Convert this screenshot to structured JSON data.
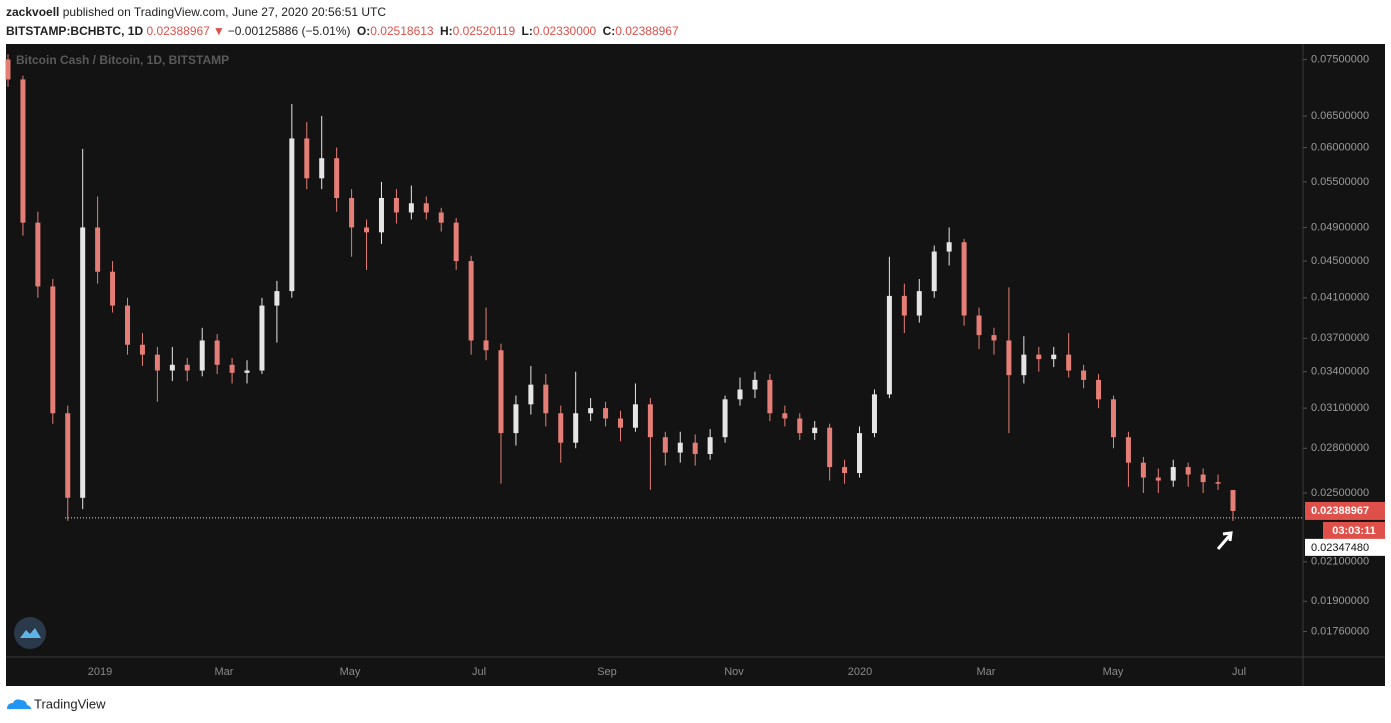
{
  "header": {
    "author": "zackvoell",
    "published": "published on TradingView.com, June 27, 2020 20:56:51 UTC",
    "symbol": "BITSTAMP:BCHBTC, 1D",
    "last": "0.02388967",
    "arrow": "▼",
    "change": "−0.00125886 (−5.01%)",
    "o_label": "O:",
    "o": "0.02518613",
    "h_label": "H:",
    "h": "0.02520119",
    "l_label": "L:",
    "l": "0.02330000",
    "c_label": "C:",
    "c": "0.02388967"
  },
  "footer": {
    "brand": "TradingView"
  },
  "chart_data": {
    "type": "candlestick",
    "watermark": "Bitcoin Cash / Bitcoin, 1D, BITSTAMP",
    "log_scale": true,
    "grid": false,
    "up_color": "#e6e6e6",
    "down_color": "#e57e76",
    "ylim": [
      0.0165,
      0.078
    ],
    "yticks": [
      {
        "value": 0.075,
        "label": "0.07500000"
      },
      {
        "value": 0.065,
        "label": "0.06500000"
      },
      {
        "value": 0.06,
        "label": "0.06000000"
      },
      {
        "value": 0.055,
        "label": "0.05500000"
      },
      {
        "value": 0.049,
        "label": "0.04900000"
      },
      {
        "value": 0.045,
        "label": "0.04500000"
      },
      {
        "value": 0.041,
        "label": "0.04100000"
      },
      {
        "value": 0.037,
        "label": "0.03700000"
      },
      {
        "value": 0.034,
        "label": "0.03400000"
      },
      {
        "value": 0.031,
        "label": "0.03100000"
      },
      {
        "value": 0.028,
        "label": "0.02800000"
      },
      {
        "value": 0.025,
        "label": "0.02500000"
      },
      {
        "value": 0.021,
        "label": "0.02100000"
      },
      {
        "value": 0.019,
        "label": "0.01900000"
      },
      {
        "value": 0.0176,
        "label": "0.01760000"
      }
    ],
    "xlabels": [
      "2019",
      "Mar",
      "May",
      "Jul",
      "Sep",
      "Nov",
      "2020",
      "Mar",
      "May",
      "Jul"
    ],
    "last_price": {
      "value": 0.02388967,
      "label": "0.02388967"
    },
    "countdown": "03:03:11",
    "hline": {
      "value": 0.0234748,
      "label": "0.02347480"
    },
    "candles": [
      [
        0.075,
        0.076,
        0.07,
        0.0713
      ],
      [
        0.0713,
        0.072,
        0.048,
        0.0496
      ],
      [
        0.0496,
        0.051,
        0.041,
        0.0422
      ],
      [
        0.0422,
        0.043,
        0.0298,
        0.0306
      ],
      [
        0.0306,
        0.0312,
        0.0233,
        0.0247
      ],
      [
        0.0247,
        0.0598,
        0.024,
        0.049
      ],
      [
        0.049,
        0.053,
        0.0425,
        0.0438
      ],
      [
        0.0438,
        0.045,
        0.0395,
        0.0402
      ],
      [
        0.0402,
        0.041,
        0.0355,
        0.0364
      ],
      [
        0.0364,
        0.0375,
        0.0345,
        0.0355
      ],
      [
        0.0355,
        0.0362,
        0.0315,
        0.0341
      ],
      [
        0.0341,
        0.0362,
        0.0332,
        0.0346
      ],
      [
        0.0346,
        0.0352,
        0.0332,
        0.0341
      ],
      [
        0.0341,
        0.038,
        0.0336,
        0.0368
      ],
      [
        0.0368,
        0.0374,
        0.0338,
        0.0346
      ],
      [
        0.0346,
        0.0352,
        0.033,
        0.0339
      ],
      [
        0.0339,
        0.035,
        0.033,
        0.0341
      ],
      [
        0.0341,
        0.041,
        0.0338,
        0.0402
      ],
      [
        0.0402,
        0.0428,
        0.0366,
        0.0417
      ],
      [
        0.0417,
        0.067,
        0.041,
        0.0614
      ],
      [
        0.0614,
        0.064,
        0.054,
        0.0555
      ],
      [
        0.0555,
        0.065,
        0.054,
        0.0584
      ],
      [
        0.0584,
        0.06,
        0.051,
        0.0528
      ],
      [
        0.0528,
        0.054,
        0.0455,
        0.049
      ],
      [
        0.049,
        0.05,
        0.044,
        0.0484
      ],
      [
        0.0484,
        0.055,
        0.047,
        0.0528
      ],
      [
        0.0528,
        0.054,
        0.0495,
        0.0509
      ],
      [
        0.0509,
        0.0545,
        0.05,
        0.0521
      ],
      [
        0.0521,
        0.053,
        0.05,
        0.0509
      ],
      [
        0.0509,
        0.0515,
        0.0485,
        0.0496
      ],
      [
        0.0496,
        0.0502,
        0.044,
        0.045
      ],
      [
        0.045,
        0.0456,
        0.0355,
        0.0368
      ],
      [
        0.0368,
        0.04,
        0.035,
        0.0359
      ],
      [
        0.0359,
        0.0365,
        0.0256,
        0.0291
      ],
      [
        0.0291,
        0.032,
        0.0282,
        0.0313
      ],
      [
        0.0313,
        0.0345,
        0.0305,
        0.0329
      ],
      [
        0.0329,
        0.0338,
        0.0296,
        0.0306
      ],
      [
        0.0306,
        0.0312,
        0.027,
        0.0284
      ],
      [
        0.0284,
        0.034,
        0.028,
        0.0306
      ],
      [
        0.0306,
        0.0318,
        0.03,
        0.031
      ],
      [
        0.031,
        0.0315,
        0.0296,
        0.0302
      ],
      [
        0.0302,
        0.0308,
        0.0285,
        0.0295
      ],
      [
        0.0295,
        0.033,
        0.0292,
        0.0313
      ],
      [
        0.0313,
        0.0318,
        0.0252,
        0.0288
      ],
      [
        0.0288,
        0.0292,
        0.0268,
        0.0277
      ],
      [
        0.0277,
        0.0292,
        0.027,
        0.0284
      ],
      [
        0.0284,
        0.029,
        0.0268,
        0.0276
      ],
      [
        0.0276,
        0.0294,
        0.0272,
        0.0288
      ],
      [
        0.0288,
        0.032,
        0.0284,
        0.0317
      ],
      [
        0.0317,
        0.0335,
        0.0312,
        0.0325
      ],
      [
        0.0325,
        0.034,
        0.0318,
        0.0333
      ],
      [
        0.0333,
        0.0338,
        0.03,
        0.0306
      ],
      [
        0.0306,
        0.0312,
        0.0296,
        0.0302
      ],
      [
        0.0302,
        0.0306,
        0.0286,
        0.0291
      ],
      [
        0.0291,
        0.03,
        0.0286,
        0.0295
      ],
      [
        0.0295,
        0.0298,
        0.0258,
        0.0267
      ],
      [
        0.0267,
        0.0272,
        0.0256,
        0.0263
      ],
      [
        0.0263,
        0.0296,
        0.026,
        0.0291
      ],
      [
        0.0291,
        0.0325,
        0.0288,
        0.0321
      ],
      [
        0.0321,
        0.0455,
        0.0318,
        0.0412
      ],
      [
        0.0412,
        0.0425,
        0.0375,
        0.0392
      ],
      [
        0.0392,
        0.043,
        0.0385,
        0.0417
      ],
      [
        0.0417,
        0.0468,
        0.041,
        0.0461
      ],
      [
        0.0461,
        0.049,
        0.0445,
        0.0472
      ],
      [
        0.0472,
        0.0476,
        0.0382,
        0.0392
      ],
      [
        0.0392,
        0.04,
        0.036,
        0.0373
      ],
      [
        0.0373,
        0.038,
        0.0355,
        0.0368
      ],
      [
        0.0368,
        0.0421,
        0.0291,
        0.0337
      ],
      [
        0.0337,
        0.0372,
        0.033,
        0.0355
      ],
      [
        0.0355,
        0.0362,
        0.034,
        0.0351
      ],
      [
        0.0351,
        0.0362,
        0.0344,
        0.0355
      ],
      [
        0.0355,
        0.0375,
        0.0335,
        0.0341
      ],
      [
        0.0341,
        0.0346,
        0.0326,
        0.0333
      ],
      [
        0.0333,
        0.0338,
        0.031,
        0.0317
      ],
      [
        0.0317,
        0.032,
        0.028,
        0.0288
      ],
      [
        0.0288,
        0.0292,
        0.0254,
        0.027
      ],
      [
        0.027,
        0.0274,
        0.025,
        0.026
      ],
      [
        0.026,
        0.0266,
        0.025,
        0.0258
      ],
      [
        0.0258,
        0.0272,
        0.0254,
        0.0267
      ],
      [
        0.0267,
        0.027,
        0.0254,
        0.0262
      ],
      [
        0.0262,
        0.0266,
        0.025,
        0.0257
      ],
      [
        0.0257,
        0.0262,
        0.0252,
        0.0256
      ],
      [
        0.02518613,
        0.02520119,
        0.0233,
        0.02388967
      ]
    ]
  }
}
